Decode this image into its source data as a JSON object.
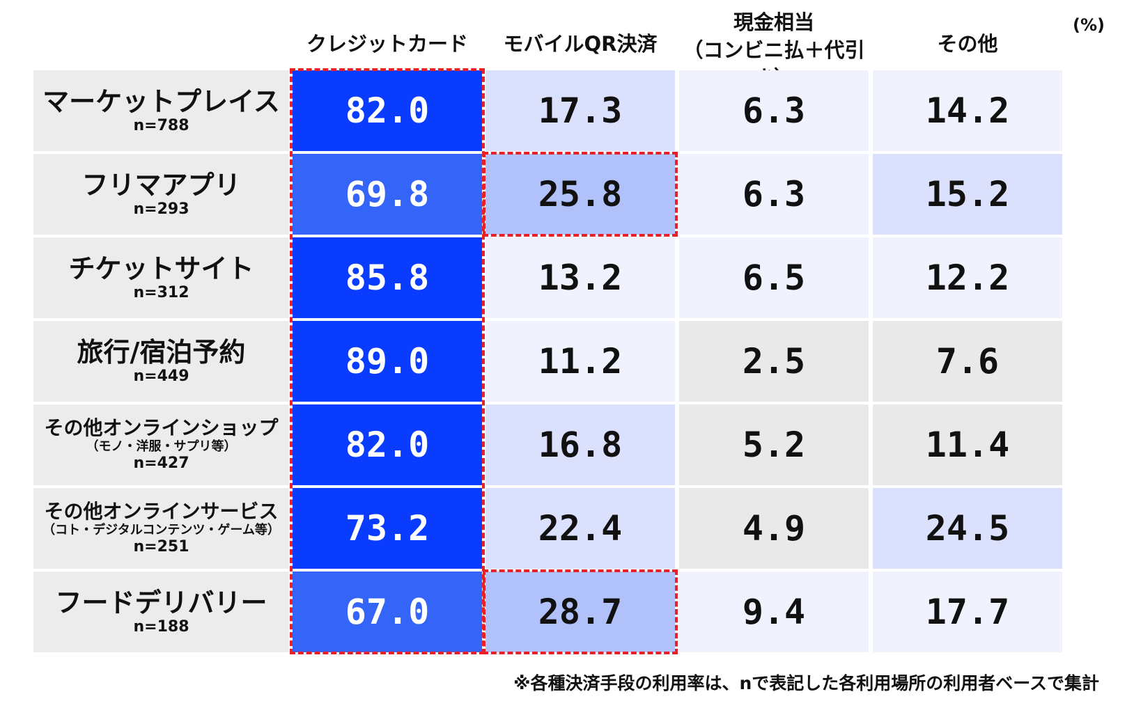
{
  "unit_label": "(%)",
  "footnote": "※各種決済手段の利用率は、nで表記した各利用場所の利用者ベースで集計",
  "chart_data": {
    "type": "table",
    "unit": "%",
    "columns": [
      {
        "label": "クレジットカード"
      },
      {
        "label": "モバイルQR決済"
      },
      {
        "label": "現金相当\n（コンビニ払＋代引き）"
      },
      {
        "label": "その他"
      }
    ],
    "rows": [
      {
        "label": "マーケットプレイス",
        "sub": "",
        "n": "n=788",
        "values": [
          "82.0",
          "17.3",
          "6.3",
          "14.2"
        ]
      },
      {
        "label": "フリマアプリ",
        "sub": "",
        "n": "n=293",
        "values": [
          "69.8",
          "25.8",
          "6.3",
          "15.2"
        ]
      },
      {
        "label": "チケットサイト",
        "sub": "",
        "n": "n=312",
        "values": [
          "85.8",
          "13.2",
          "6.5",
          "12.2"
        ]
      },
      {
        "label": "旅行/宿泊予約",
        "sub": "",
        "n": "n=449",
        "values": [
          "89.0",
          "11.2",
          "2.5",
          "7.6"
        ]
      },
      {
        "label": "その他オンラインショップ",
        "sub": "（モノ・洋服・サプリ等）",
        "n": "n=427",
        "values": [
          "82.0",
          "16.8",
          "5.2",
          "11.4"
        ]
      },
      {
        "label": "その他オンラインサービス",
        "sub": "（コト・デジタルコンテンツ・ゲーム等）",
        "n": "n=251",
        "values": [
          "73.2",
          "22.4",
          "4.9",
          "24.5"
        ]
      },
      {
        "label": "フードデリバリー",
        "sub": "",
        "n": "n=188",
        "values": [
          "67.0",
          "28.7",
          "9.4",
          "17.7"
        ]
      }
    ],
    "cell_colors": [
      [
        "#0a3cff",
        "#dbe1fc",
        "#f0f3fd",
        "#f0f3fd"
      ],
      [
        "#3465f8",
        "#b1c2fb",
        "#f0f3fd",
        "#dbe1fc"
      ],
      [
        "#0a3cff",
        "#f0f3fd",
        "#f0f3fd",
        "#f0f3fd"
      ],
      [
        "#0a3cff",
        "#f0f3fd",
        "#e9e9e9",
        "#e9e9e9"
      ],
      [
        "#0a3cff",
        "#dbe1fc",
        "#e9e9e9",
        "#e9e9e9"
      ],
      [
        "#0a3cff",
        "#dbe1fc",
        "#e9e9e9",
        "#dbe1fc"
      ],
      [
        "#3465f8",
        "#b1c2fb",
        "#f0f3fd",
        "#f0f3fd"
      ]
    ],
    "highlights": [
      {
        "column": 0,
        "rows": [
          0,
          6
        ]
      },
      {
        "column": 1,
        "rows": [
          1,
          1
        ]
      },
      {
        "column": 1,
        "rows": [
          6,
          6
        ]
      }
    ],
    "highlight_color": "#e8202a",
    "text_color_on_dark": "#ffffff"
  }
}
